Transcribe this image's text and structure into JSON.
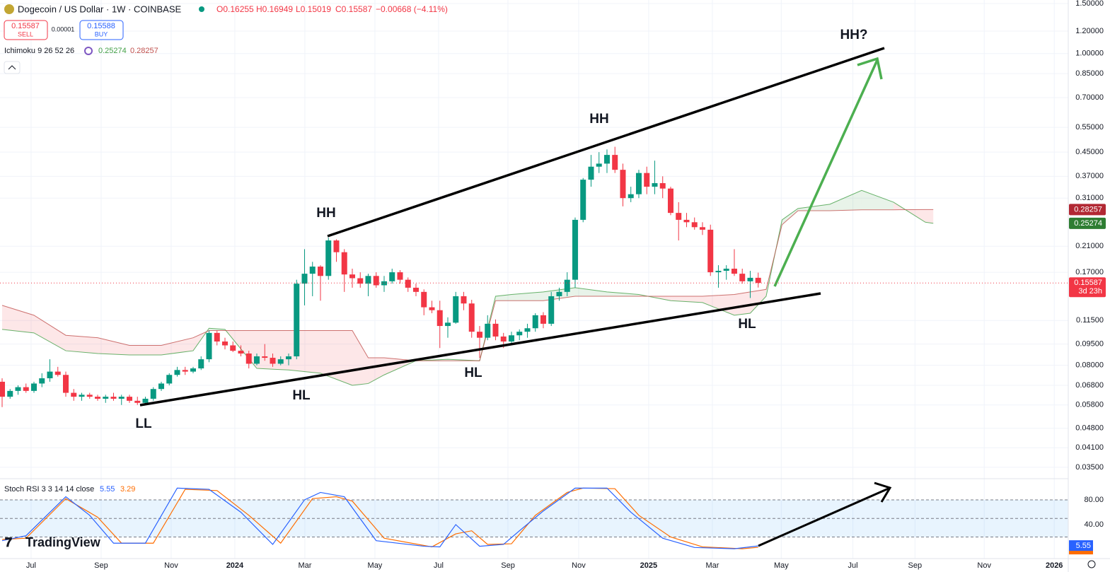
{
  "chart_data": {
    "type": "candlestick",
    "title": "Dogecoin / US Dollar · 1W · COINBASE",
    "ohlc_labels": [
      "O0.16255",
      "H0.16949",
      "L0.15019",
      "C0.15587",
      "−0.00668 (−4.11%)"
    ],
    "sell_label": "SELL",
    "buy_label": "BUY",
    "buy_price": "0.15588",
    "spread": "0.00001",
    "countdown": "3d 23h",
    "up_color": "#089981",
    "down_color": "#f23645",
    "log_scale": true,
    "grid": true,
    "categories": [
      null,
      null,
      null,
      null,
      null,
      null,
      null,
      null,
      null,
      null,
      null,
      null,
      null,
      null,
      null,
      null,
      null,
      null,
      null,
      null,
      null,
      null,
      null,
      null,
      null,
      null,
      null,
      null,
      null,
      null,
      null,
      null,
      null,
      null,
      null,
      null,
      null,
      null,
      null,
      null,
      null,
      null,
      null,
      null,
      null,
      null,
      null,
      null,
      null,
      null,
      null,
      null,
      null,
      null,
      null,
      null,
      null,
      null,
      null,
      null,
      null,
      null,
      null,
      null,
      null,
      null,
      null,
      null,
      null,
      null,
      null,
      null,
      null,
      null,
      null,
      null,
      null,
      null,
      null,
      null,
      null,
      null,
      null,
      null,
      null,
      null,
      null,
      null,
      null,
      null,
      null,
      null,
      null,
      null,
      null,
      null
    ],
    "open": [
      0.07,
      0.062,
      0.065,
      0.067,
      0.065,
      0.069,
      0.072,
      0.076,
      0.074,
      0.064,
      0.062,
      0.063,
      0.062,
      0.061,
      0.062,
      0.061,
      0.062,
      0.06,
      0.059,
      0.061,
      0.066,
      0.069,
      0.074,
      0.077,
      0.076,
      0.078,
      0.084,
      0.104,
      0.097,
      0.094,
      0.09,
      0.088,
      0.081,
      0.086,
      0.085,
      0.081,
      0.084,
      0.086,
      0.155,
      0.168,
      0.178,
      0.165,
      0.22,
      0.2,
      0.167,
      0.162,
      0.155,
      0.165,
      0.153,
      0.158,
      0.17,
      0.16,
      0.15,
      0.145,
      0.128,
      0.125,
      0.11,
      0.113,
      0.14,
      0.132,
      0.105,
      0.1,
      0.112,
      0.101,
      0.097,
      0.102,
      0.105,
      0.108,
      0.12,
      0.112,
      0.14,
      0.145,
      0.16,
      0.26,
      0.36,
      0.4,
      0.41,
      0.44,
      0.39,
      0.31,
      0.32,
      0.38,
      0.34,
      0.35,
      0.335,
      0.275,
      0.26,
      0.255,
      0.245,
      0.24,
      0.17,
      0.172,
      0.175,
      0.168,
      0.158,
      0.16255
    ],
    "high": [
      0.072,
      0.066,
      0.068,
      0.069,
      0.07,
      0.075,
      0.084,
      0.079,
      0.076,
      0.066,
      0.064,
      0.064,
      0.063,
      0.063,
      0.064,
      0.063,
      0.063,
      0.062,
      0.062,
      0.067,
      0.07,
      0.075,
      0.079,
      0.079,
      0.079,
      0.086,
      0.106,
      0.106,
      0.1,
      0.097,
      0.094,
      0.09,
      0.088,
      0.095,
      0.088,
      0.086,
      0.088,
      0.16,
      0.205,
      0.185,
      0.18,
      0.225,
      0.222,
      0.205,
      0.175,
      0.17,
      0.168,
      0.17,
      0.165,
      0.175,
      0.173,
      0.163,
      0.155,
      0.148,
      0.135,
      0.135,
      0.118,
      0.145,
      0.145,
      0.136,
      0.11,
      0.12,
      0.116,
      0.104,
      0.105,
      0.107,
      0.112,
      0.122,
      0.123,
      0.145,
      0.15,
      0.17,
      0.265,
      0.365,
      0.44,
      0.45,
      0.46,
      0.47,
      0.41,
      0.34,
      0.39,
      0.4,
      0.42,
      0.37,
      0.34,
      0.3,
      0.275,
      0.265,
      0.255,
      0.25,
      0.18,
      0.18,
      0.205,
      0.175,
      0.172,
      0.16949
    ],
    "low": [
      0.057,
      0.061,
      0.063,
      0.064,
      0.064,
      0.067,
      0.07,
      0.073,
      0.062,
      0.06,
      0.06,
      0.061,
      0.06,
      0.059,
      0.06,
      0.058,
      0.059,
      0.058,
      0.058,
      0.06,
      0.065,
      0.068,
      0.073,
      0.074,
      0.075,
      0.077,
      0.082,
      0.094,
      0.091,
      0.089,
      0.086,
      0.078,
      0.08,
      0.083,
      0.079,
      0.08,
      0.08,
      0.084,
      0.13,
      0.14,
      0.135,
      0.16,
      0.185,
      0.145,
      0.15,
      0.15,
      0.14,
      0.15,
      0.145,
      0.155,
      0.155,
      0.145,
      0.14,
      0.12,
      0.122,
      0.092,
      0.1,
      0.112,
      0.125,
      0.1,
      0.085,
      0.098,
      0.098,
      0.092,
      0.095,
      0.098,
      0.1,
      0.105,
      0.108,
      0.11,
      0.135,
      0.14,
      0.15,
      0.255,
      0.34,
      0.38,
      0.38,
      0.38,
      0.29,
      0.3,
      0.31,
      0.32,
      0.32,
      0.31,
      0.27,
      0.22,
      0.245,
      0.24,
      0.23,
      0.165,
      0.15,
      0.16,
      0.165,
      0.155,
      0.138,
      0.15019
    ],
    "close": [
      0.062,
      0.065,
      0.067,
      0.065,
      0.069,
      0.072,
      0.076,
      0.074,
      0.064,
      0.062,
      0.063,
      0.062,
      0.061,
      0.062,
      0.061,
      0.062,
      0.06,
      0.059,
      0.061,
      0.066,
      0.069,
      0.074,
      0.077,
      0.076,
      0.078,
      0.084,
      0.104,
      0.097,
      0.094,
      0.09,
      0.088,
      0.081,
      0.086,
      0.085,
      0.081,
      0.084,
      0.086,
      0.155,
      0.168,
      0.178,
      0.165,
      0.22,
      0.2,
      0.167,
      0.162,
      0.155,
      0.165,
      0.153,
      0.158,
      0.17,
      0.16,
      0.15,
      0.145,
      0.128,
      0.125,
      0.11,
      0.113,
      0.14,
      0.132,
      0.105,
      0.1,
      0.112,
      0.101,
      0.097,
      0.102,
      0.105,
      0.108,
      0.12,
      0.112,
      0.14,
      0.145,
      0.16,
      0.26,
      0.36,
      0.4,
      0.41,
      0.44,
      0.39,
      0.31,
      0.32,
      0.38,
      0.34,
      0.35,
      0.335,
      0.275,
      0.26,
      0.255,
      0.245,
      0.24,
      0.17,
      0.172,
      0.175,
      0.168,
      0.158,
      0.16255,
      0.15587
    ],
    "xlim": [
      -0.267,
      133.96
    ],
    "xticks": [
      {
        "value": 3.64,
        "label": "Jul"
      },
      {
        "value": 12.44,
        "label": "Sep"
      },
      {
        "value": 21.24,
        "label": "Nov"
      },
      {
        "value": 29.24,
        "label": "2024"
      },
      {
        "value": 38.04,
        "label": "Mar"
      },
      {
        "value": 46.84,
        "label": "May"
      },
      {
        "value": 54.84,
        "label": "Jul"
      },
      {
        "value": 63.56,
        "label": "Sep"
      },
      {
        "value": 72.44,
        "label": "Nov"
      },
      {
        "value": 81.24,
        "label": "2025"
      },
      {
        "value": 89.24,
        "label": "Mar"
      },
      {
        "value": 97.9,
        "label": "May"
      },
      {
        "value": 106.9,
        "label": "Jul"
      },
      {
        "value": 114.7,
        "label": "Sep"
      },
      {
        "value": 123.4,
        "label": "Nov"
      },
      {
        "value": 132.2,
        "label": "2026"
      }
    ],
    "ylim": [
      0.0321,
      1.544
    ],
    "yticks": [
      {
        "value": 1.5,
        "label": "1.50000"
      },
      {
        "value": 1.2,
        "label": "1.20000"
      },
      {
        "value": 1.0,
        "label": "1.00000"
      },
      {
        "value": 0.85,
        "label": "0.85000"
      },
      {
        "value": 0.7,
        "label": "0.70000"
      },
      {
        "value": 0.55,
        "label": "0.55000"
      },
      {
        "value": 0.45,
        "label": "0.45000"
      },
      {
        "value": 0.37,
        "label": "0.37000"
      },
      {
        "value": 0.31,
        "label": "0.31000"
      },
      {
        "value": 0.21,
        "label": "0.21000"
      },
      {
        "value": 0.17,
        "label": "0.17000"
      },
      {
        "value": 0.115,
        "label": "0.11500"
      },
      {
        "value": 0.095,
        "label": "0.09500"
      },
      {
        "value": 0.08,
        "label": "0.08000"
      },
      {
        "value": 0.068,
        "label": "0.06800"
      },
      {
        "value": 0.058,
        "label": "0.05800"
      },
      {
        "value": 0.048,
        "label": "0.04800"
      },
      {
        "value": 0.041,
        "label": "0.04100"
      },
      {
        "value": 0.035,
        "label": "0.03500"
      }
    ],
    "ichimoku": {
      "name": "Ichimoku 9 26 52 26",
      "span_a_color": "#43a047",
      "span_b_color": "#c0504d",
      "x": [
        0,
        4,
        8,
        12,
        16,
        20,
        24,
        26,
        28,
        32,
        36,
        40,
        44,
        46,
        48,
        52,
        56,
        60,
        62,
        64,
        68,
        72,
        76,
        80,
        84,
        88,
        92,
        94,
        96,
        98,
        100,
        104,
        108,
        112,
        116,
        117
      ],
      "span_a": [
        0.107,
        0.104,
        0.09,
        0.088,
        0.087,
        0.087,
        0.09,
        0.108,
        0.107,
        0.078,
        0.077,
        0.075,
        0.068,
        0.069,
        0.074,
        0.083,
        0.084,
        0.083,
        0.14,
        0.142,
        0.145,
        0.15,
        0.145,
        0.142,
        0.135,
        0.133,
        0.12,
        0.122,
        0.14,
        0.26,
        0.285,
        0.295,
        0.33,
        0.3,
        0.255,
        0.25274
      ],
      "span_b": [
        0.13,
        0.12,
        0.102,
        0.1,
        0.094,
        0.094,
        0.1,
        0.106,
        0.106,
        0.106,
        0.106,
        0.106,
        0.106,
        0.085,
        0.085,
        0.083,
        0.083,
        0.083,
        0.135,
        0.135,
        0.135,
        0.14,
        0.14,
        0.14,
        0.14,
        0.14,
        0.142,
        0.145,
        0.148,
        0.25,
        0.28,
        0.28,
        0.282,
        0.282,
        0.2826,
        0.28257
      ]
    },
    "annotations": [
      "HH?",
      "HH",
      "HH",
      "HL",
      "HL",
      "HL",
      "LL"
    ],
    "stoch": {
      "name": "Stoch RSI 3 3 14 14 close",
      "k_color": "#2962ff",
      "d_color": "#ff6d00",
      "ylim": [
        -14.9,
        113.1
      ],
      "yticks": [
        {
          "value": 80,
          "label": "80.00"
        },
        {
          "value": 40,
          "label": "40.00"
        }
      ],
      "band_lines": [
        80,
        50,
        20
      ],
      "k_x": [
        0,
        3,
        8,
        11,
        14,
        18,
        22,
        26,
        30,
        34,
        38,
        40,
        43,
        47,
        53,
        55,
        57,
        60,
        63,
        65,
        68,
        72,
        76,
        79,
        83,
        87,
        92,
        95
      ],
      "k": [
        14,
        22,
        85,
        55,
        10,
        10,
        99,
        97,
        60,
        8,
        80,
        92,
        85,
        14,
        5,
        4,
        40,
        5,
        8,
        30,
        62,
        99,
        99,
        60,
        18,
        3,
        1,
        5.55
      ],
      "d_x": [
        0,
        3,
        8,
        12,
        15,
        19,
        23,
        27,
        31,
        35,
        39,
        42,
        44,
        48,
        54,
        57,
        59,
        61,
        64,
        67,
        71,
        73,
        77,
        80,
        84,
        88,
        93,
        95
      ],
      "d": [
        16,
        18,
        82,
        52,
        10,
        10,
        97,
        95,
        55,
        10,
        82,
        85,
        78,
        18,
        4,
        25,
        30,
        8,
        9,
        55,
        92,
        99,
        98,
        55,
        20,
        4,
        1,
        3.29
      ]
    },
    "watermark": "TradingView"
  }
}
